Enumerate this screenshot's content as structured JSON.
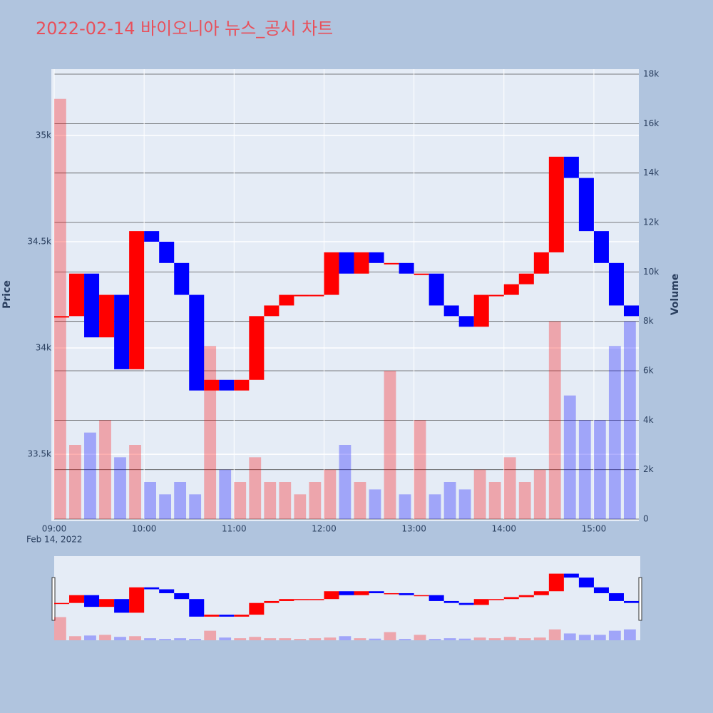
{
  "chart_data": {
    "type": "candlestick",
    "title": "2022-02-14 바이오니아 뉴스_공시 차트",
    "x": [
      "09:00",
      "09:10",
      "09:20",
      "09:30",
      "09:40",
      "09:50",
      "10:00",
      "10:10",
      "10:20",
      "10:30",
      "10:40",
      "10:50",
      "11:00",
      "11:10",
      "11:20",
      "11:30",
      "11:40",
      "11:50",
      "12:00",
      "12:10",
      "12:20",
      "12:30",
      "12:40",
      "12:50",
      "13:00",
      "13:10",
      "13:20",
      "13:30",
      "13:40",
      "13:50",
      "14:00",
      "14:10",
      "14:20",
      "14:30",
      "14:40",
      "14:50",
      "15:00",
      "15:10",
      "15:20"
    ],
    "open": [
      34150,
      34150,
      34350,
      34050,
      34250,
      33900,
      34550,
      34500,
      34400,
      34250,
      33800,
      33850,
      33800,
      33850,
      34150,
      34200,
      34250,
      34250,
      34250,
      34450,
      34350,
      34450,
      34400,
      34400,
      34350,
      34350,
      34200,
      34150,
      34100,
      34250,
      34250,
      34300,
      34350,
      34450,
      34900,
      34800,
      34550,
      34400,
      34200
    ],
    "close": [
      34150,
      34350,
      34050,
      34250,
      33900,
      34550,
      34500,
      34400,
      34250,
      33800,
      33850,
      33800,
      33850,
      34150,
      34200,
      34250,
      34250,
      34250,
      34450,
      34350,
      34450,
      34400,
      34400,
      34350,
      34350,
      34200,
      34150,
      34100,
      34250,
      34250,
      34300,
      34350,
      34450,
      34900,
      34800,
      34550,
      34400,
      34200,
      34150
    ],
    "volume": [
      17000,
      3000,
      3500,
      4000,
      2500,
      3000,
      1500,
      1000,
      1500,
      1000,
      7000,
      2000,
      1500,
      2500,
      1500,
      1500,
      1000,
      1500,
      2000,
      3000,
      1500,
      1200,
      6000,
      1000,
      4000,
      1000,
      1500,
      1200,
      2000,
      1500,
      2500,
      1500,
      2000,
      8000,
      5000,
      4000,
      4000,
      7000,
      8000
    ],
    "increasing_color": "#ff0000",
    "decreasing_color": "#0000ff",
    "xlim": [
      "09:00",
      "15:30"
    ],
    "xticks": [
      "09:00",
      "10:00",
      "11:00",
      "12:00",
      "13:00",
      "14:00",
      "15:00"
    ],
    "x_sublabel": "Feb 14, 2022",
    "ylim": [
      33195,
      35312
    ],
    "yticks": [
      {
        "value": 33500,
        "label": "33.5k"
      },
      {
        "value": 34000,
        "label": "34k"
      },
      {
        "value": 34500,
        "label": "34.5k"
      },
      {
        "value": 35000,
        "label": "35k"
      }
    ],
    "y2lim": [
      0,
      18203
    ],
    "y2ticks": [
      0,
      {
        "value": 2000,
        "label": "2k"
      },
      {
        "value": 4000,
        "label": "4k"
      },
      {
        "value": 6000,
        "label": "6k"
      },
      {
        "value": 8000,
        "label": "8k"
      },
      {
        "value": 10000,
        "label": "10k"
      },
      {
        "value": 12000,
        "label": "12k"
      },
      {
        "value": 14000,
        "label": "14k"
      },
      {
        "value": 16000,
        "label": "16k"
      },
      {
        "value": 18000,
        "label": "18k"
      }
    ],
    "yaxis_title": "Price",
    "y2axis_title": "Volume",
    "grid": true,
    "range_slider": true
  }
}
